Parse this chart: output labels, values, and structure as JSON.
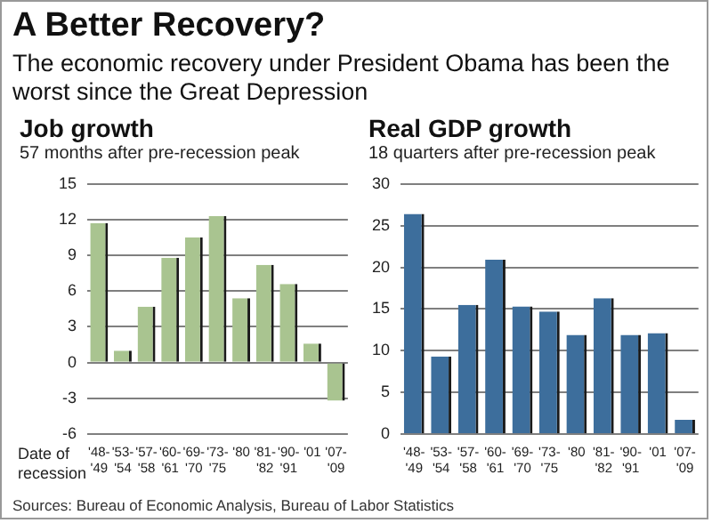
{
  "chart_data": [
    {
      "type": "other",
      "title": "A Better Recovery?",
      "subtitle": "The economic recovery under President Obama has been the worst since the Great Depression",
      "annotations": [
        "Sources: Bureau of Economic Analysis, Bureau of Labor Statistics"
      ]
    },
    {
      "type": "bar",
      "title": "Job growth",
      "subtitle": "57 months after pre-recession peak",
      "xlabel": "Date of recession",
      "categories": [
        "'48-'49",
        "'53-'54",
        "'57-'58",
        "'60-'61",
        "'69-'70",
        "'73-'75",
        "'80",
        "'81-'82",
        "'90-'91",
        "'01",
        "'07-'09"
      ],
      "values": [
        11.7,
        1.0,
        4.7,
        8.8,
        10.5,
        12.3,
        5.4,
        8.2,
        6.6,
        1.6,
        -3.2
      ],
      "color": "#a9c490",
      "ylim": [
        -6,
        15
      ],
      "yticks": [
        -6,
        -3,
        0,
        3,
        6,
        9,
        12,
        15
      ],
      "grid": "y"
    },
    {
      "type": "bar",
      "title": "Real GDP growth",
      "subtitle": "18 quarters after pre-recession peak",
      "categories": [
        "'48-'49",
        "'53-'54",
        "'57-'58",
        "'60-'61",
        "'69-'70",
        "'73-'75",
        "'80",
        "'81-'82",
        "'90-'91",
        "'01",
        "'07-'09"
      ],
      "values": [
        26.4,
        9.3,
        15.5,
        20.9,
        15.3,
        14.7,
        11.9,
        16.3,
        11.9,
        12.1,
        1.7
      ],
      "color": "#3d6e9c",
      "ylim": [
        0,
        30
      ],
      "yticks": [
        0,
        5,
        10,
        15,
        20,
        25,
        30
      ],
      "grid": "y"
    }
  ]
}
